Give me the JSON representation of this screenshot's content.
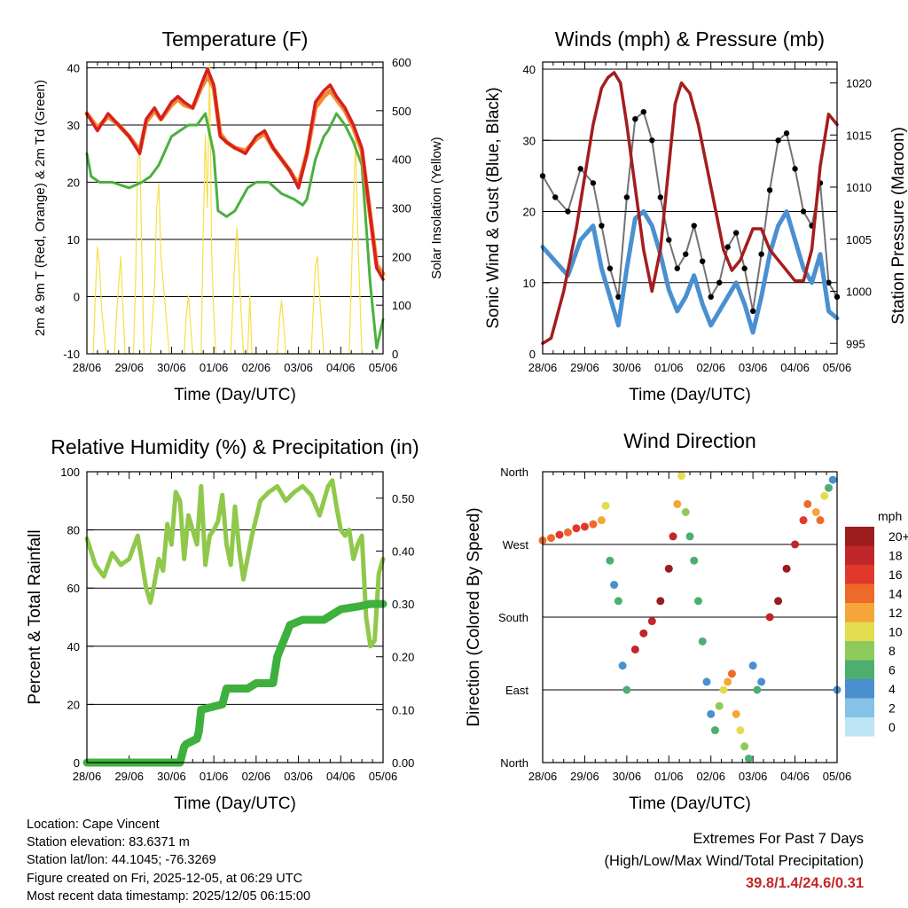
{
  "colors": {
    "temp2m": "#d62020",
    "temp9m": "#f28a30",
    "dewpoint": "#4bb040",
    "insolation": "#f5e04a",
    "wind": "#4a90d0",
    "gust": "#000000",
    "pressure": "#a51d1d",
    "humidity": "#8fc84a",
    "rainfall": "#3eb03e"
  },
  "chart_data": [
    {
      "type": "line",
      "title": "Temperature (F)",
      "xlabel": "Time (Day/UTC)",
      "ylabel": "2m & 9m T (Red, Orange) & 2m Td (Green)",
      "y2label": "Solar Insolation (Yellow)",
      "xticks": [
        "28/06",
        "29/06",
        "30/06",
        "01/06",
        "02/06",
        "03/06",
        "04/06",
        "05/06"
      ],
      "xlim": [
        0,
        7
      ],
      "ylim": [
        -10,
        41
      ],
      "yticks": [
        -10,
        0,
        10,
        20,
        30,
        40
      ],
      "y2lim": [
        0,
        600
      ],
      "y2ticks": [
        0,
        100,
        200,
        300,
        400,
        500,
        600
      ],
      "series": [
        {
          "name": "2m T",
          "x": [
            0,
            0.25,
            0.5,
            0.75,
            1,
            1.25,
            1.4,
            1.6,
            1.75,
            2,
            2.15,
            2.3,
            2.5,
            2.7,
            2.85,
            3,
            3.15,
            3.3,
            3.5,
            3.75,
            4,
            4.2,
            4.4,
            4.6,
            4.8,
            5,
            5.2,
            5.4,
            5.6,
            5.75,
            5.9,
            6.1,
            6.3,
            6.5,
            6.7,
            6.85,
            7
          ],
          "y": [
            32,
            29,
            32,
            30,
            28,
            25,
            31,
            33,
            31,
            34,
            35,
            34,
            33,
            37,
            39.8,
            37,
            28,
            27,
            26,
            25,
            28,
            29,
            26,
            24,
            22,
            19,
            25,
            34,
            36,
            37,
            35,
            33,
            30,
            26,
            14,
            5,
            3
          ]
        },
        {
          "name": "9m T",
          "x": [
            0,
            0.25,
            0.5,
            0.75,
            1,
            1.25,
            1.4,
            1.6,
            1.75,
            2,
            2.15,
            2.3,
            2.5,
            2.7,
            2.85,
            3,
            3.15,
            3.3,
            3.5,
            3.75,
            4,
            4.2,
            4.4,
            4.6,
            4.8,
            5,
            5.2,
            5.4,
            5.6,
            5.75,
            5.9,
            6.1,
            6.3,
            6.5,
            6.7,
            6.85,
            7
          ],
          "y": [
            32,
            29.5,
            31.5,
            30,
            28,
            25.5,
            30.5,
            32.5,
            31,
            33.5,
            34.5,
            33.5,
            33,
            36.5,
            38.5,
            36.5,
            28.5,
            27,
            26,
            25.5,
            27.5,
            28.5,
            26,
            24,
            22,
            19.5,
            25,
            33,
            35,
            36,
            34.5,
            32.5,
            29.5,
            25.5,
            14,
            5.5,
            4
          ]
        },
        {
          "name": "2m Td",
          "x": [
            0,
            0.1,
            0.3,
            0.6,
            1,
            1.3,
            1.5,
            1.7,
            2,
            2.2,
            2.4,
            2.6,
            2.8,
            3,
            3.1,
            3.3,
            3.5,
            3.8,
            4,
            4.3,
            4.6,
            4.9,
            5.1,
            5.2,
            5.4,
            5.6,
            5.7,
            5.9,
            6.1,
            6.3,
            6.5,
            6.7,
            6.85,
            7
          ],
          "y": [
            25,
            21,
            20,
            20,
            19,
            20,
            21,
            23,
            28,
            29,
            30,
            30,
            32,
            25,
            15,
            14,
            15,
            19,
            20,
            20,
            18,
            17,
            16,
            17,
            24,
            28,
            29,
            32,
            30,
            27,
            23,
            2,
            -9,
            -4
          ]
        },
        {
          "name": "Solar Insolation",
          "axis": "right",
          "x": [
            0.15,
            0.2,
            0.25,
            0.3,
            0.35,
            0.45,
            0.65,
            0.7,
            0.8,
            0.9,
            1.1,
            1.15,
            1.2,
            1.25,
            1.3,
            1.35,
            1.5,
            1.6,
            1.65,
            1.7,
            1.75,
            1.85,
            1.95,
            2.3,
            2.35,
            2.4,
            2.5,
            2.55,
            2.7,
            2.75,
            2.8,
            2.85,
            2.9,
            2.95,
            3,
            3.05,
            3.2,
            3.4,
            3.5,
            3.55,
            3.6,
            3.7,
            3.8,
            3.85,
            3.9,
            4.1,
            4.3,
            4.5,
            4.55,
            4.6,
            4.65,
            4.7,
            4.8,
            4.9,
            5,
            5.3,
            5.4,
            5.45,
            5.5,
            5.6,
            5.75,
            5.85,
            6,
            6.2,
            6.3,
            6.35,
            6.4,
            6.5,
            6.55,
            6.7,
            6.8
          ],
          "y": [
            0,
            120,
            220,
            180,
            90,
            0,
            0,
            80,
            200,
            0,
            0,
            150,
            400,
            420,
            200,
            0,
            0,
            140,
            300,
            350,
            200,
            100,
            0,
            0,
            80,
            120,
            0,
            0,
            0,
            250,
            450,
            300,
            600,
            200,
            80,
            0,
            0,
            0,
            200,
            260,
            160,
            0,
            0,
            120,
            0,
            0,
            0,
            0,
            70,
            110,
            60,
            0,
            0,
            0,
            0,
            0,
            180,
            200,
            120,
            0,
            0,
            0,
            0,
            0,
            300,
            450,
            250,
            0,
            0,
            0,
            0
          ]
        }
      ]
    },
    {
      "type": "line",
      "title": "Winds (mph) & Pressure (mb)",
      "xlabel": "Time (Day/UTC)",
      "ylabel": "Sonic Wind & Gust (Blue, Black)",
      "y2label": "Station Pressure (Maroon)",
      "xticks": [
        "28/06",
        "29/06",
        "30/06",
        "01/06",
        "02/06",
        "03/06",
        "04/06",
        "05/06"
      ],
      "xlim": [
        0,
        7
      ],
      "ylim": [
        0,
        41
      ],
      "yticks": [
        0,
        10,
        20,
        30,
        40
      ],
      "y2lim": [
        994,
        1022
      ],
      "y2ticks": [
        995,
        1000,
        1005,
        1010,
        1015,
        1020
      ],
      "series": [
        {
          "name": "Sonic Wind",
          "x": [
            0,
            0.3,
            0.6,
            0.9,
            1.2,
            1.4,
            1.6,
            1.8,
            2,
            2.2,
            2.4,
            2.6,
            2.8,
            3,
            3.2,
            3.4,
            3.6,
            3.8,
            4,
            4.2,
            4.4,
            4.6,
            4.8,
            5,
            5.2,
            5.4,
            5.6,
            5.8,
            6,
            6.2,
            6.4,
            6.6,
            6.8,
            7
          ],
          "y": [
            15,
            13,
            11,
            16,
            18,
            12,
            8,
            4,
            12,
            19,
            20,
            18,
            14,
            9,
            6,
            8,
            11,
            7,
            4,
            6,
            8,
            10,
            7,
            3,
            8,
            14,
            18,
            20,
            16,
            12,
            10,
            14,
            6,
            5
          ]
        },
        {
          "name": "Gust",
          "x": [
            0,
            0.3,
            0.6,
            0.9,
            1.2,
            1.4,
            1.6,
            1.8,
            2,
            2.2,
            2.4,
            2.6,
            2.8,
            3,
            3.2,
            3.4,
            3.6,
            3.8,
            4,
            4.2,
            4.4,
            4.6,
            4.8,
            5,
            5.2,
            5.4,
            5.6,
            5.8,
            6,
            6.2,
            6.4,
            6.6,
            6.8,
            7
          ],
          "y": [
            25,
            22,
            20,
            26,
            24,
            18,
            12,
            8,
            22,
            33,
            34,
            30,
            22,
            16,
            12,
            14,
            18,
            13,
            8,
            10,
            15,
            17,
            12,
            6,
            14,
            23,
            30,
            31,
            26,
            20,
            18,
            24,
            10,
            8
          ]
        },
        {
          "name": "Station Pressure",
          "axis": "right",
          "x": [
            0,
            0.2,
            0.5,
            0.8,
            1,
            1.2,
            1.4,
            1.55,
            1.7,
            1.85,
            2,
            2.2,
            2.4,
            2.6,
            2.8,
            3,
            3.15,
            3.3,
            3.5,
            3.7,
            3.9,
            4.1,
            4.3,
            4.5,
            4.7,
            4.9,
            5,
            5.2,
            5.4,
            5.6,
            5.8,
            6,
            6.2,
            6.4,
            6.6,
            6.8,
            7
          ],
          "y": [
            995,
            995.5,
            1000,
            1006,
            1011,
            1016,
            1019.5,
            1020.5,
            1021,
            1020,
            1016,
            1010,
            1004,
            1000,
            1004,
            1012,
            1018,
            1020,
            1019,
            1016,
            1012,
            1008,
            1004,
            1002,
            1003,
            1005,
            1006,
            1006,
            1004,
            1003,
            1002,
            1001,
            1001,
            1004,
            1012,
            1017,
            1016
          ]
        }
      ]
    },
    {
      "type": "line",
      "title": "Relative Humidity (%) & Precipitation (in)",
      "xlabel": "Time (Day/UTC)",
      "ylabel": "Percent & Total Rainfall",
      "xticks": [
        "28/06",
        "29/06",
        "30/06",
        "01/06",
        "02/06",
        "03/06",
        "04/06",
        "05/06"
      ],
      "xlim": [
        0,
        7
      ],
      "ylim": [
        0,
        100
      ],
      "yticks": [
        0,
        20,
        40,
        60,
        80,
        100
      ],
      "y2lim": [
        0,
        0.55
      ],
      "y2ticks": [
        "0.00",
        "0.10",
        "0.20",
        "0.30",
        "0.40",
        "0.50"
      ],
      "series": [
        {
          "name": "Relative Humidity",
          "x": [
            0,
            0.2,
            0.4,
            0.6,
            0.8,
            1,
            1.2,
            1.4,
            1.5,
            1.6,
            1.7,
            1.8,
            1.9,
            2,
            2.1,
            2.2,
            2.3,
            2.4,
            2.5,
            2.6,
            2.7,
            2.8,
            2.9,
            3,
            3.1,
            3.2,
            3.3,
            3.4,
            3.5,
            3.6,
            3.7,
            3.9,
            4.1,
            4.3,
            4.5,
            4.7,
            4.9,
            5.1,
            5.3,
            5.5,
            5.7,
            5.8,
            5.9,
            6,
            6.1,
            6.2,
            6.3,
            6.4,
            6.5,
            6.6,
            6.7,
            6.8,
            6.9,
            7
          ],
          "y": [
            77,
            68,
            64,
            72,
            68,
            70,
            78,
            60,
            55,
            62,
            70,
            66,
            82,
            75,
            93,
            90,
            70,
            85,
            80,
            75,
            95,
            68,
            78,
            80,
            83,
            92,
            75,
            68,
            88,
            73,
            63,
            78,
            90,
            93,
            95,
            90,
            93,
            95,
            92,
            85,
            95,
            97,
            88,
            80,
            78,
            80,
            70,
            75,
            78,
            50,
            40,
            42,
            65,
            70
          ]
        },
        {
          "name": "Total Rainfall",
          "axis": "right",
          "x": [
            0,
            1.5,
            2.2,
            2.3,
            2.35,
            2.6,
            2.65,
            2.7,
            3.2,
            3.3,
            3.5,
            3.7,
            3.8,
            4.0,
            4.2,
            4.4,
            4.5,
            4.8,
            5.1,
            5.3,
            5.6,
            6,
            6.4,
            6.7,
            7
          ],
          "y": [
            0,
            0,
            0,
            0.03,
            0.035,
            0.045,
            0.06,
            0.1,
            0.11,
            0.14,
            0.14,
            0.14,
            0.14,
            0.15,
            0.15,
            0.15,
            0.2,
            0.26,
            0.27,
            0.27,
            0.27,
            0.29,
            0.295,
            0.3,
            0.3
          ]
        }
      ]
    },
    {
      "type": "scatter",
      "title": "Wind Direction",
      "xlabel": "Time (Day/UTC)",
      "ylabel": "Direction (Colored By Speed)",
      "xticks": [
        "28/06",
        "29/06",
        "30/06",
        "01/06",
        "02/06",
        "03/06",
        "04/06",
        "05/06"
      ],
      "xlim": [
        0,
        7
      ],
      "ylim": [
        0,
        360
      ],
      "yticks": [
        "North",
        "East",
        "South",
        "West",
        "North"
      ],
      "colorbar": {
        "label": "mph",
        "levels": [
          "20+",
          "18",
          "16",
          "14",
          "12",
          "10",
          "8",
          "6",
          "4",
          "2",
          "0"
        ]
      },
      "series": [
        {
          "name": "Direction",
          "x": [
            0,
            0.2,
            0.4,
            0.6,
            0.8,
            1,
            1.2,
            1.4,
            1.5,
            1.6,
            1.7,
            1.8,
            1.9,
            2,
            2.2,
            2.4,
            2.6,
            2.8,
            3,
            3.1,
            3.2,
            3.3,
            3.4,
            3.5,
            3.6,
            3.7,
            3.8,
            3.9,
            4,
            4.1,
            4.2,
            4.3,
            4.4,
            4.5,
            4.6,
            4.7,
            4.8,
            4.9,
            5,
            5.1,
            5.2,
            5.4,
            5.6,
            5.8,
            6,
            6.2,
            6.3,
            6.5,
            6.6,
            6.7,
            6.8,
            6.9,
            7
          ],
          "y": [
            275,
            278,
            282,
            285,
            290,
            292,
            295,
            300,
            318,
            250,
            220,
            200,
            120,
            90,
            140,
            160,
            175,
            200,
            240,
            280,
            320,
            355,
            310,
            280,
            250,
            200,
            150,
            100,
            60,
            40,
            70,
            90,
            100,
            110,
            60,
            40,
            20,
            5,
            120,
            90,
            100,
            180,
            200,
            240,
            270,
            300,
            320,
            310,
            300,
            330,
            340,
            350,
            90
          ],
          "speed": [
            14,
            14,
            15,
            14,
            16,
            15,
            14,
            12,
            10,
            6,
            4,
            5,
            3,
            6,
            17,
            18,
            18,
            19,
            19,
            18,
            12,
            10,
            8,
            5,
            6,
            6,
            5,
            3,
            4,
            6,
            8,
            10,
            12,
            14,
            12,
            10,
            8,
            6,
            4,
            5,
            3,
            18,
            20,
            19,
            18,
            16,
            14,
            12,
            14,
            10,
            6,
            3,
            4
          ]
        }
      ]
    }
  ],
  "info": {
    "location": "Location: Cape Vincent",
    "elevation": "Station elevation: 83.6371 m",
    "latlon": "Station lat/lon: 44.1045; -76.3269",
    "created": "Figure created on Fri, 2025-12-05, at 06:29 UTC",
    "recent": "Most recent data timestamp: 2025/12/05 06:15:00"
  },
  "extremes": {
    "title": "Extremes For Past 7 Days",
    "subtitle": "(High/Low/Max Wind/Total Precipitation)",
    "value": "39.8/1.4/24.6/0.31"
  }
}
